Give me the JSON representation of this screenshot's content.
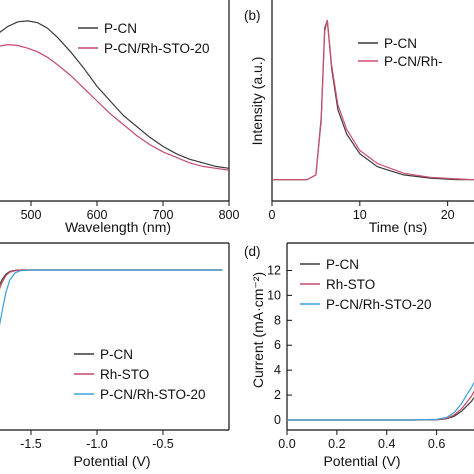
{
  "chart_data": [
    {
      "id": "a",
      "type": "line",
      "panel_label": "",
      "xlabel": "Wavelength (nm)",
      "ylabel": "",
      "xlim": [
        450,
        800
      ],
      "ylim": [
        0,
        1.05
      ],
      "xticks": [
        "500",
        "600",
        "700",
        "800"
      ],
      "xtick_values": [
        500,
        600,
        700,
        800
      ],
      "yticks": [],
      "legend": {
        "placement": "top-right",
        "entries": [
          "P-CN",
          "P-CN/Rh-STO-20"
        ]
      },
      "grid": false,
      "series": [
        {
          "name": "P-CN",
          "color": "#3a3a3a",
          "x": [
            450,
            465,
            480,
            495,
            510,
            525,
            540,
            560,
            580,
            600,
            620,
            640,
            660,
            680,
            700,
            720,
            740,
            760,
            780,
            800
          ],
          "y": [
            0.92,
            0.96,
            0.985,
            0.99,
            0.98,
            0.95,
            0.9,
            0.82,
            0.73,
            0.63,
            0.55,
            0.47,
            0.41,
            0.35,
            0.3,
            0.26,
            0.23,
            0.21,
            0.19,
            0.18
          ]
        },
        {
          "name": "P-CN/Rh-STO-20",
          "color": "#c44a6a",
          "x": [
            450,
            465,
            480,
            495,
            510,
            525,
            540,
            560,
            580,
            600,
            620,
            640,
            660,
            680,
            700,
            720,
            740,
            760,
            780,
            800
          ],
          "y": [
            0.85,
            0.86,
            0.855,
            0.84,
            0.82,
            0.79,
            0.75,
            0.69,
            0.62,
            0.55,
            0.48,
            0.42,
            0.36,
            0.31,
            0.27,
            0.24,
            0.21,
            0.19,
            0.18,
            0.17
          ]
        }
      ]
    },
    {
      "id": "b",
      "type": "line",
      "panel_label": "(b)",
      "xlabel": "Time (ns)",
      "ylabel": "Intensity (a.u.)",
      "xlim": [
        0,
        23
      ],
      "ylim": [
        0,
        1.05
      ],
      "xticks": [
        "0",
        "10",
        "20"
      ],
      "xtick_values": [
        0,
        10,
        20
      ],
      "yticks": [],
      "legend": {
        "placement": "top-right",
        "entries": [
          "P-CN",
          "P-CN/Rh-"
        ]
      },
      "grid": false,
      "series": [
        {
          "name": "P-CN",
          "color": "#3a3a3a",
          "x": [
            0,
            4,
            5,
            5.6,
            6,
            6.3,
            6.8,
            7.5,
            8.5,
            10,
            12,
            15,
            18,
            21,
            23
          ],
          "y": [
            0.02,
            0.02,
            0.05,
            0.4,
            0.95,
            1.0,
            0.7,
            0.45,
            0.3,
            0.18,
            0.1,
            0.05,
            0.03,
            0.02,
            0.02
          ]
        },
        {
          "name": "P-CN/Rh-",
          "color": "#d0506e",
          "x": [
            0,
            4,
            5,
            5.6,
            6,
            6.3,
            6.8,
            7.5,
            8.5,
            10,
            12,
            15,
            18,
            21,
            23
          ],
          "y": [
            0.02,
            0.02,
            0.05,
            0.38,
            0.93,
            1.0,
            0.72,
            0.48,
            0.33,
            0.2,
            0.12,
            0.06,
            0.035,
            0.025,
            0.02
          ]
        }
      ]
    },
    {
      "id": "c",
      "type": "line",
      "panel_label": "",
      "xlabel": "Potential (V)",
      "ylabel": "",
      "xlim": [
        -1.75,
        0
      ],
      "ylim": [
        -14,
        0.5
      ],
      "xticks": [
        "-1.5",
        "-1.0",
        "-0.5"
      ],
      "xtick_values": [
        -1.5,
        -1.0,
        -0.5
      ],
      "yticks": [],
      "legend": {
        "placement": "bottom-center",
        "entries": [
          "P-CN",
          "Rh-STO",
          "P-CN/Rh-STO-20"
        ]
      },
      "grid": false,
      "series": [
        {
          "name": "P-CN",
          "color": "#3a3a3a",
          "x": [
            -1.75,
            -1.72,
            -1.69,
            -1.66,
            -1.62,
            -1.58,
            -1.5,
            -1.2,
            -0.8,
            -0.4,
            -0.05
          ],
          "y": [
            -1.3,
            -0.7,
            -0.3,
            -0.1,
            -0.03,
            0,
            0,
            0,
            0,
            0,
            0
          ]
        },
        {
          "name": "Rh-STO",
          "color": "#c44a6a",
          "x": [
            -1.75,
            -1.72,
            -1.69,
            -1.66,
            -1.62,
            -1.58,
            -1.5,
            -1.2,
            -0.8,
            -0.4,
            -0.05
          ],
          "y": [
            -1.6,
            -0.9,
            -0.4,
            -0.15,
            -0.05,
            0,
            0,
            0,
            0,
            0,
            0
          ]
        },
        {
          "name": "P-CN/Rh-STO-20",
          "color": "#3aa0d8",
          "x": [
            -1.75,
            -1.72,
            -1.69,
            -1.66,
            -1.62,
            -1.58,
            -1.5,
            -1.2,
            -0.8,
            -0.4,
            -0.05
          ],
          "y": [
            -4.5,
            -3.0,
            -1.6,
            -0.7,
            -0.2,
            -0.05,
            0,
            0,
            0,
            0,
            0
          ]
        }
      ]
    },
    {
      "id": "d",
      "type": "line",
      "panel_label": "(d)",
      "xlabel": "Potential (V)",
      "ylabel": "Current (mA·cm⁻²)",
      "xlim": [
        0,
        0.75
      ],
      "ylim": [
        -0.5,
        14
      ],
      "xticks": [
        "0.0",
        "0.2",
        "0.4",
        "0.6"
      ],
      "xtick_values": [
        0.0,
        0.2,
        0.4,
        0.6
      ],
      "yticks": [
        "0",
        "2",
        "4",
        "6",
        "8",
        "10",
        "12"
      ],
      "ytick_values": [
        0,
        2,
        4,
        6,
        8,
        10,
        12
      ],
      "legend": {
        "placement": "top-center",
        "entries": [
          "P-CN",
          "Rh-STO",
          "P-CN/Rh-STO-20"
        ]
      },
      "grid": false,
      "series": [
        {
          "name": "P-CN",
          "color": "#3a3a3a",
          "x": [
            0,
            0.3,
            0.5,
            0.6,
            0.64,
            0.67,
            0.7,
            0.72,
            0.74,
            0.75
          ],
          "y": [
            0,
            0,
            0,
            0.02,
            0.1,
            0.3,
            0.7,
            1.1,
            1.5,
            1.8
          ]
        },
        {
          "name": "Rh-STO",
          "color": "#c44a6a",
          "x": [
            0,
            0.3,
            0.5,
            0.6,
            0.64,
            0.67,
            0.7,
            0.72,
            0.74,
            0.75
          ],
          "y": [
            0,
            0,
            0,
            0.03,
            0.12,
            0.4,
            0.9,
            1.4,
            1.9,
            2.3
          ]
        },
        {
          "name": "P-CN/Rh-STO-20",
          "color": "#3aa0d8",
          "x": [
            0,
            0.3,
            0.5,
            0.6,
            0.64,
            0.67,
            0.7,
            0.72,
            0.74,
            0.75
          ],
          "y": [
            0,
            0,
            0,
            0.05,
            0.2,
            0.6,
            1.3,
            2.0,
            2.6,
            3.0
          ]
        }
      ]
    }
  ]
}
